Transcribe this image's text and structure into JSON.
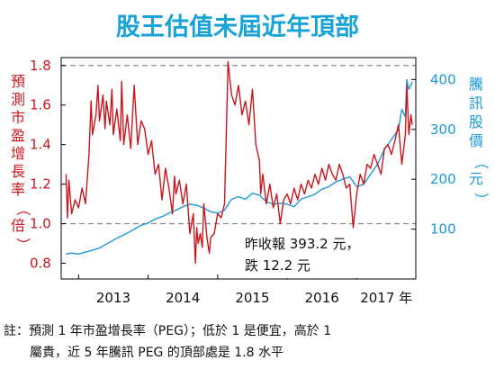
{
  "chart_data": {
    "type": "line",
    "title": "股王估值未屆近年頂部",
    "ylabel_left": "預測市盈增長率（倍）",
    "ylabel_right": "騰訊股價（元）",
    "x_tick_labels": [
      "2013",
      "2014",
      "2015",
      "2016",
      "2017 年"
    ],
    "xlim": [
      2012.75,
      2017.85
    ],
    "ylim_left": [
      0.72,
      1.84
    ],
    "ylim_right": [
      0,
      444
    ],
    "left_ticks": [
      0.8,
      1.0,
      1.2,
      1.4,
      1.6,
      1.8
    ],
    "left_tick_labels": [
      "0.8",
      "1.0",
      "1.2",
      "1.4",
      "1.6",
      "1.8"
    ],
    "right_ticks": [
      100,
      200,
      300,
      400
    ],
    "right_tick_labels": [
      "100",
      "200",
      "300",
      "400"
    ],
    "reference_lines_left": [
      1.8,
      1.0
    ],
    "grid": false,
    "annotation": {
      "line1": "昨收報 393.2 元，",
      "line2": "跌 12.2 元"
    },
    "footnote": {
      "line1": "註：預測 1 年市盈增長率（PEG）；低於 1 是便宜，高於 1",
      "line2": "屬貴，近 5 年騰訊 PEG 的頂部處是 1.8 水平"
    },
    "colors": {
      "peg": "#c8161d",
      "price": "#1a9ad6",
      "title": "#17a3d8"
    },
    "series": [
      {
        "axis": "left",
        "x": [
          2012.82,
          2012.84,
          2012.86,
          2012.9,
          2012.95,
          2013.0,
          2013.05,
          2013.1,
          2013.15,
          2013.18,
          2013.2,
          2013.25,
          2013.28,
          2013.3,
          2013.35,
          2013.38,
          2013.4,
          2013.45,
          2013.48,
          2013.5,
          2013.55,
          2013.6,
          2013.62,
          2013.65,
          2013.7,
          2013.75,
          2013.8,
          2013.85,
          2013.9,
          2013.95,
          2014.0,
          2014.05,
          2014.1,
          2014.15,
          2014.2,
          2014.25,
          2014.3,
          2014.35,
          2014.38,
          2014.4,
          2014.45,
          2014.5,
          2014.55,
          2014.6,
          2014.65,
          2014.68,
          2014.7,
          2014.72,
          2014.75,
          2014.78,
          2014.8,
          2014.85,
          2014.88,
          2014.9,
          2014.95,
          2015.0,
          2015.05,
          2015.1,
          2015.15,
          2015.2,
          2015.25,
          2015.3,
          2015.35,
          2015.4,
          2015.45,
          2015.5,
          2015.55,
          2015.6,
          2015.62,
          2015.65,
          2015.7,
          2015.75,
          2015.8,
          2015.85,
          2015.9,
          2015.95,
          2016.0,
          2016.05,
          2016.1,
          2016.15,
          2016.2,
          2016.25,
          2016.3,
          2016.35,
          2016.4,
          2016.45,
          2016.5,
          2016.55,
          2016.6,
          2016.65,
          2016.7,
          2016.75,
          2016.8,
          2016.85,
          2016.9,
          2016.95,
          2017.0,
          2017.05,
          2017.1,
          2017.15,
          2017.2,
          2017.25,
          2017.3,
          2017.35,
          2017.4,
          2017.45,
          2017.5,
          2017.55,
          2017.6,
          2017.65,
          2017.7,
          2017.72,
          2017.75,
          2017.78,
          2017.8
        ],
        "values": [
          1.25,
          1.03,
          1.22,
          1.05,
          1.12,
          1.08,
          1.18,
          1.1,
          1.35,
          1.62,
          1.45,
          1.55,
          1.7,
          1.52,
          1.65,
          1.48,
          1.62,
          1.5,
          1.68,
          1.45,
          1.58,
          1.42,
          1.72,
          1.4,
          1.55,
          1.38,
          1.7,
          1.4,
          1.52,
          1.48,
          1.35,
          1.42,
          1.25,
          1.3,
          1.12,
          1.28,
          1.18,
          1.05,
          1.24,
          1.15,
          1.22,
          1.1,
          1.2,
          0.95,
          1.05,
          0.8,
          0.98,
          0.9,
          0.95,
          0.88,
          1.1,
          0.92,
          0.85,
          0.93,
          0.95,
          1.05,
          1.03,
          1.1,
          1.82,
          1.65,
          1.6,
          1.7,
          1.55,
          1.62,
          1.5,
          1.68,
          1.4,
          1.32,
          1.15,
          1.25,
          1.1,
          1.2,
          1.08,
          1.15,
          1.0,
          1.12,
          1.15,
          1.1,
          1.18,
          1.12,
          1.2,
          1.15,
          1.22,
          1.18,
          1.25,
          1.2,
          1.28,
          1.22,
          1.3,
          1.25,
          1.22,
          1.3,
          1.25,
          1.18,
          1.2,
          0.98,
          1.15,
          1.25,
          1.2,
          1.3,
          1.28,
          1.35,
          1.3,
          1.25,
          1.38,
          1.4,
          1.35,
          1.42,
          1.5,
          1.3,
          1.45,
          1.7,
          1.45,
          1.55,
          1.5
        ]
      },
      {
        "axis": "right",
        "x": [
          2012.82,
          2012.9,
          2013.0,
          2013.1,
          2013.2,
          2013.3,
          2013.4,
          2013.5,
          2013.6,
          2013.7,
          2013.8,
          2013.9,
          2014.0,
          2014.1,
          2014.2,
          2014.3,
          2014.4,
          2014.5,
          2014.6,
          2014.7,
          2014.8,
          2014.9,
          2015.0,
          2015.1,
          2015.2,
          2015.3,
          2015.4,
          2015.5,
          2015.6,
          2015.7,
          2015.8,
          2015.9,
          2016.0,
          2016.1,
          2016.2,
          2016.3,
          2016.4,
          2016.5,
          2016.6,
          2016.7,
          2016.8,
          2016.9,
          2017.0,
          2017.1,
          2017.2,
          2017.3,
          2017.4,
          2017.5,
          2017.6,
          2017.65,
          2017.7,
          2017.72,
          2017.75,
          2017.8
        ],
        "values": [
          50,
          52,
          50,
          54,
          58,
          62,
          70,
          78,
          85,
          92,
          100,
          108,
          112,
          120,
          125,
          132,
          138,
          145,
          150,
          148,
          142,
          135,
          132,
          138,
          160,
          165,
          160,
          172,
          168,
          155,
          150,
          152,
          150,
          145,
          160,
          165,
          170,
          180,
          185,
          195,
          200,
          205,
          185,
          190,
          210,
          230,
          260,
          280,
          300,
          340,
          325,
          400,
          380,
          395
        ]
      }
    ]
  }
}
